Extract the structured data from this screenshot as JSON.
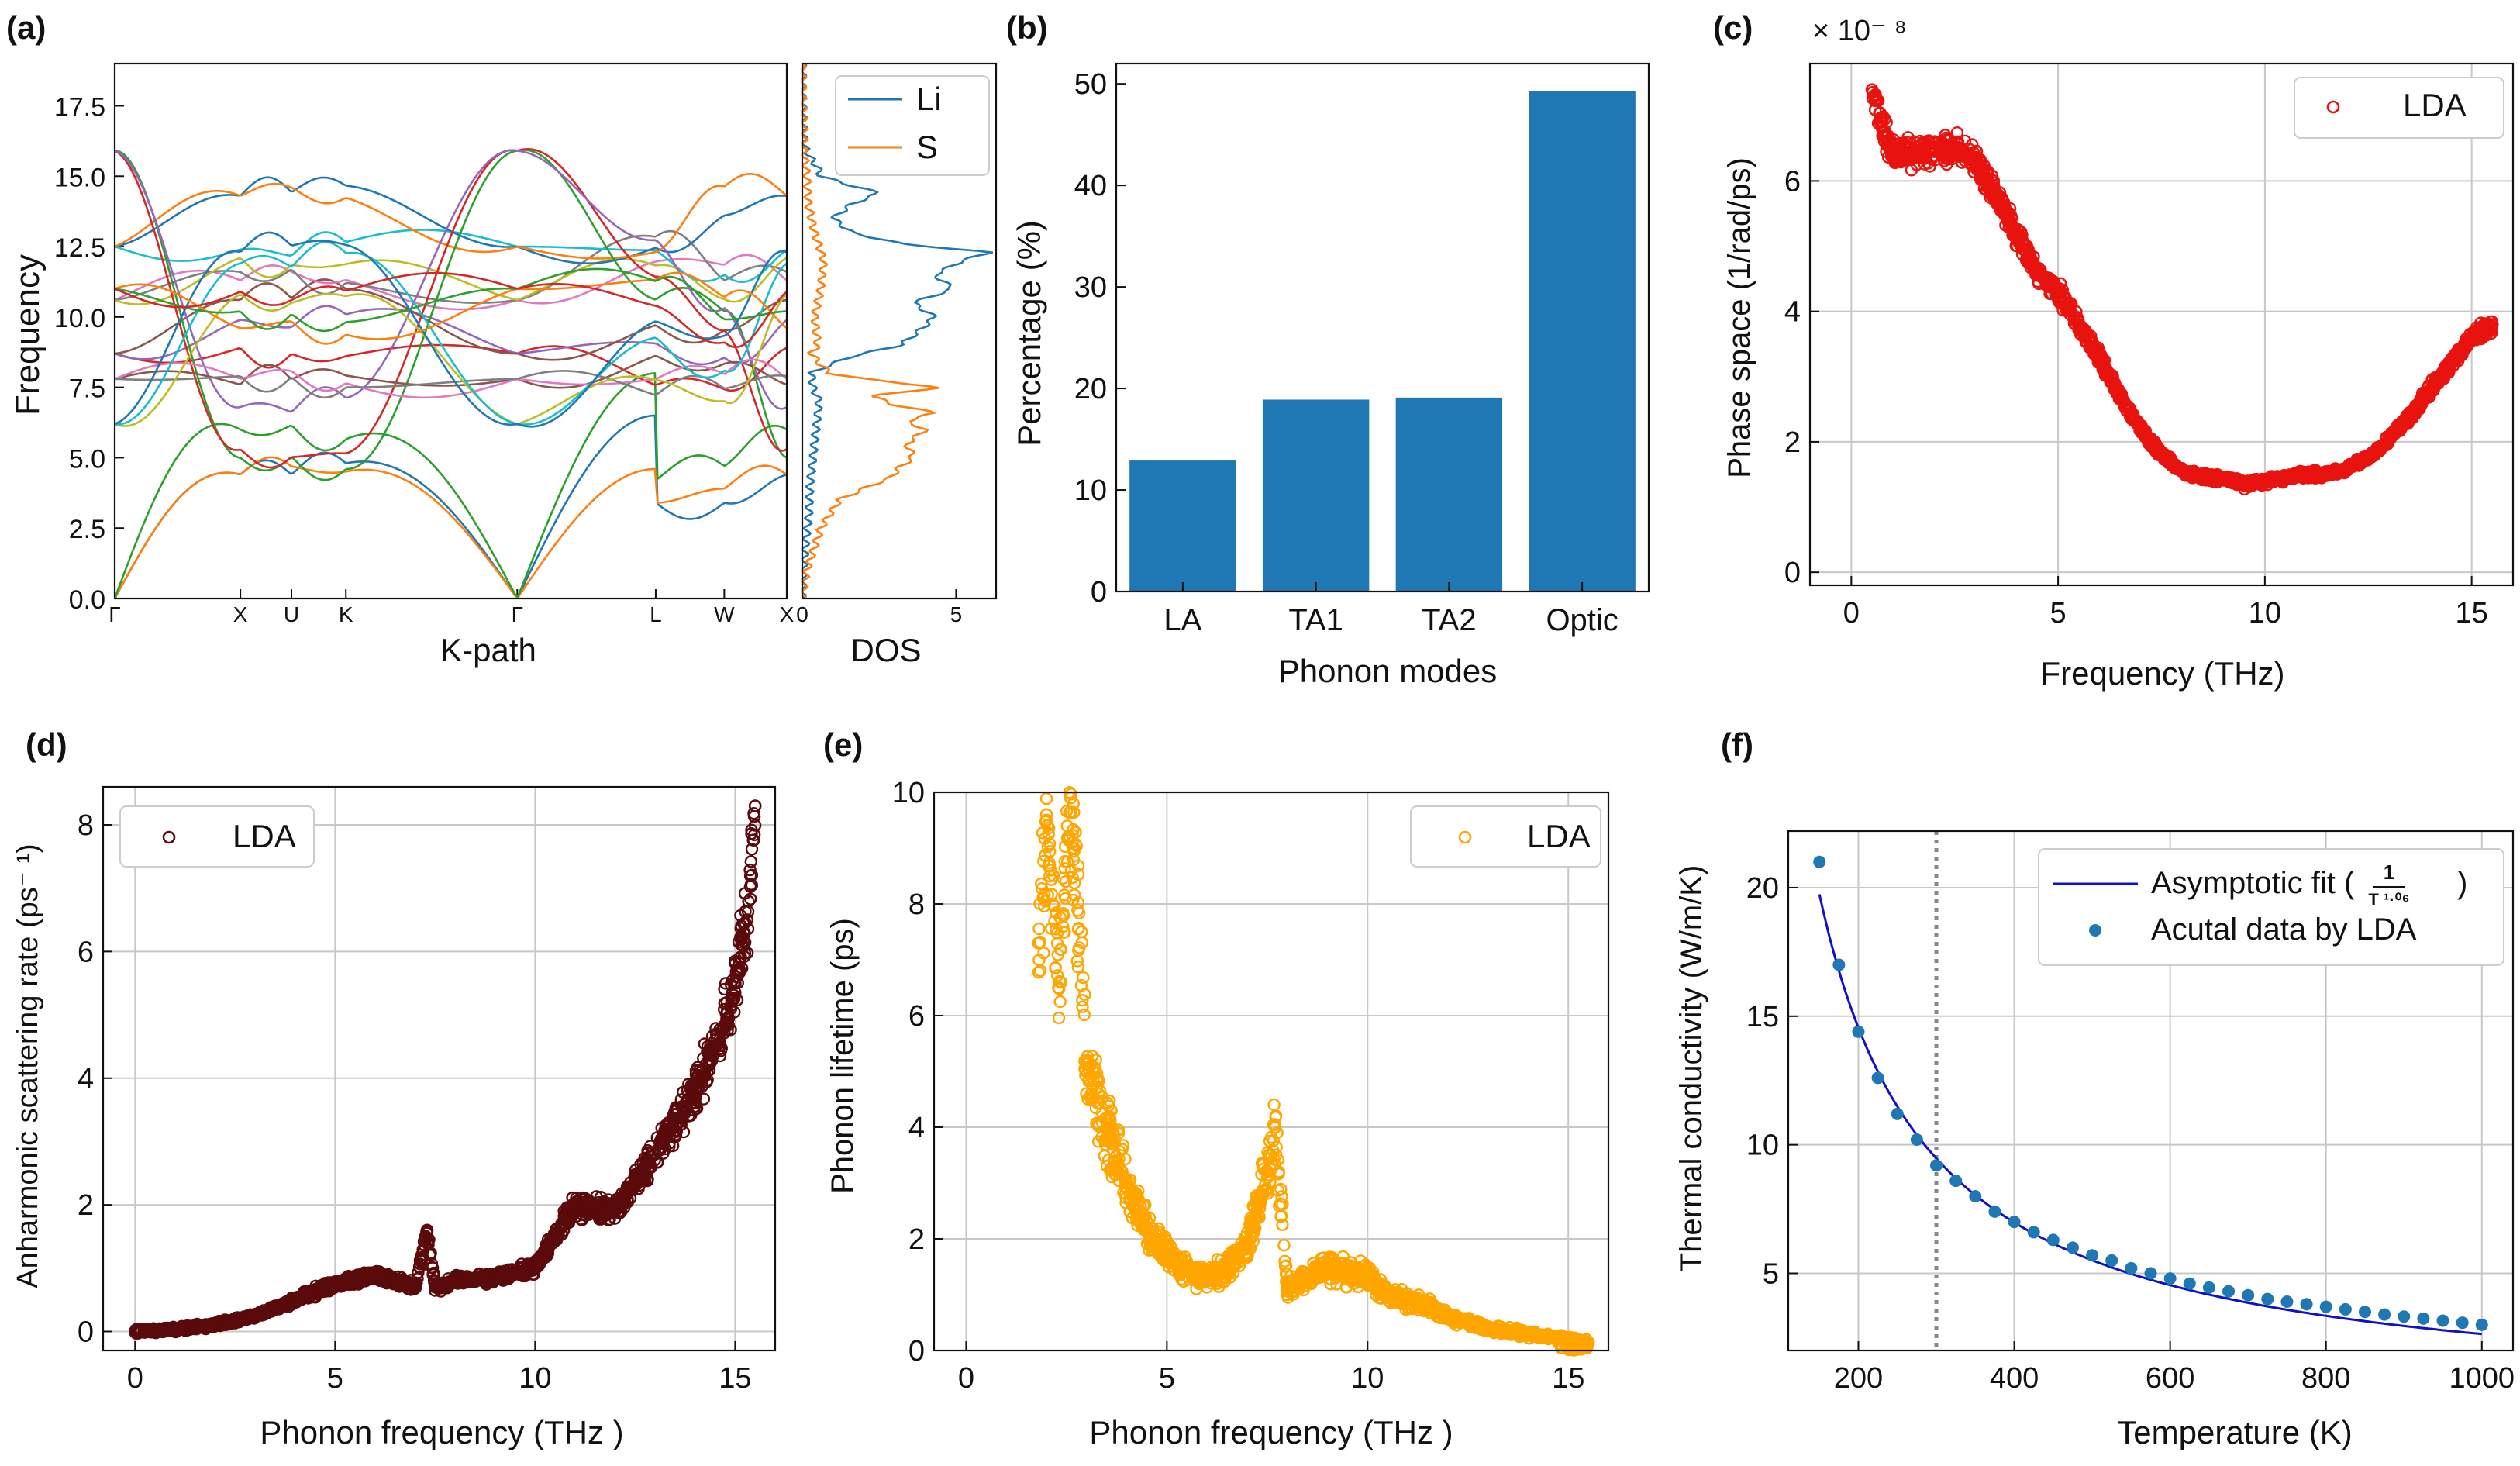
{
  "figure": {
    "panel_labels": [
      "(a)",
      "(b)",
      "(c)",
      "(d)",
      "(e)",
      "(f)"
    ]
  },
  "colors": {
    "blue": "#1f77b4",
    "orange": "#ff7f0e",
    "red": "#e8130f",
    "darkred": "#5a0a0a",
    "gold": "#ffa500",
    "fit": "#1010c8",
    "grid": "#c8c8c8",
    "dotted": "#888888",
    "palette": [
      "#1f77b4",
      "#ff7f0e",
      "#2ca02c",
      "#d62728",
      "#9467bd",
      "#8c564b",
      "#e377c2",
      "#7f7f7f",
      "#bcbd22",
      "#17becf"
    ]
  },
  "chart_data": [
    {
      "id": "a",
      "type": "line",
      "title": "",
      "xlabel": "K-path",
      "ylabel": "Frequency",
      "ylim": [
        0,
        19
      ],
      "yticks": [
        0,
        2.5,
        5.0,
        7.5,
        10.0,
        12.5,
        15.0,
        17.5
      ],
      "ytick_labels": [
        "0.0",
        "2.5",
        "5.0",
        "7.5",
        "10.0",
        "12.5",
        "15.0",
        "17.5"
      ],
      "path_ticks": [
        {
          "label": "Γ",
          "pos": 0.0
        },
        {
          "label": "X",
          "pos": 0.187
        },
        {
          "label": "U",
          "pos": 0.263
        },
        {
          "label": "K",
          "pos": 0.344
        },
        {
          "label": "Γ",
          "pos": 0.599
        },
        {
          "label": "L",
          "pos": 0.805
        },
        {
          "label": "W",
          "pos": 0.907
        },
        {
          "label": "X",
          "pos": 1.0
        }
      ],
      "n_branches": 24,
      "endpoint_frequencies": {
        "Γ": [
          0,
          0,
          0,
          8.7,
          8.7,
          8.7,
          10.6,
          10.6,
          10.6,
          12.5,
          12.5,
          12.5,
          15.9,
          15.9,
          15.9,
          7.8,
          7.8,
          7.8,
          6.2,
          6.2,
          6.2,
          11.0,
          11.0,
          11.0
        ],
        "X": [
          4.4,
          4.4,
          6.0,
          8.9,
          9.9,
          10.6,
          11.3,
          11.6,
          12.1,
          12.4,
          14.3,
          14.3,
          5.0,
          5.3,
          6.8,
          7.6,
          7.8,
          7.9,
          10.8,
          11.9,
          12.3,
          9.6,
          10.2,
          10.9
        ]
      }
    },
    {
      "id": "a-dos",
      "type": "line",
      "xlabel": "DOS",
      "ylabel": "",
      "xlim": [
        0,
        6.3
      ],
      "ylim": [
        0,
        19
      ],
      "xticks": [
        0,
        5
      ],
      "xtick_labels": [
        "0",
        "5"
      ],
      "legend": [
        "Li",
        "S"
      ],
      "legend_loc": "top-right",
      "series": [
        {
          "name": "Li",
          "color": "#1f77b4",
          "freq": [
            0,
            1,
            2,
            3,
            4,
            5,
            6,
            7,
            7.5,
            8,
            8.3,
            8.6,
            9,
            9.5,
            10,
            10.5,
            11,
            11.5,
            12,
            12.3,
            12.6,
            13,
            13.5,
            14,
            14.4,
            14.7,
            15,
            15.3,
            15.6,
            16,
            16.5,
            17,
            18,
            19
          ],
          "dos": [
            0,
            0.04,
            0.12,
            0.22,
            0.25,
            0.35,
            0.45,
            0.55,
            0.35,
            0.3,
            0.9,
            1.6,
            3.2,
            3.8,
            4.3,
            3.6,
            4.9,
            4.3,
            5.2,
            6.1,
            3.2,
            1.6,
            1.0,
            1.6,
            2.5,
            1.5,
            0.6,
            0.5,
            0.3,
            0.1,
            0.05,
            0.02,
            0,
            0
          ]
        },
        {
          "name": "S",
          "color": "#ff7f0e",
          "freq": [
            0,
            0.5,
            1,
            1.5,
            2,
            2.5,
            3,
            3.5,
            4,
            4.3,
            4.6,
            5,
            5.5,
            6,
            6.3,
            6.6,
            6.9,
            7.2,
            7.5,
            7.8,
            8,
            8.3,
            8.7,
            9,
            10,
            11,
            12,
            13,
            14,
            15,
            16,
            19
          ],
          "dos": [
            0,
            0.05,
            0.15,
            0.3,
            0.45,
            0.6,
            0.9,
            1.2,
            2.2,
            2.9,
            3.1,
            3.6,
            3.4,
            4.0,
            3.4,
            4.3,
            2.9,
            2.3,
            4.5,
            2.0,
            0.9,
            0.6,
            0.3,
            0.5,
            0.4,
            0.6,
            0.7,
            0.4,
            0.2,
            0.15,
            0.05,
            0
          ]
        }
      ]
    },
    {
      "id": "b",
      "type": "bar",
      "title": "",
      "xlabel": "Phonon modes",
      "ylabel": "Percentage (%)",
      "categories": [
        "LA",
        "TA1",
        "TA2",
        "Optic"
      ],
      "values": [
        12.9,
        18.9,
        19.1,
        49.3
      ],
      "ylim": [
        0,
        52
      ],
      "yticks": [
        0,
        10,
        20,
        30,
        40,
        50
      ]
    },
    {
      "id": "c",
      "type": "scatter",
      "title": "",
      "xlabel": "Frequency (THz)",
      "ylabel": "Phase space (1/rad/ps)",
      "scale_label": "× 10⁻ ⁸",
      "xlim": [
        -1,
        16
      ],
      "ylim": [
        -0.2,
        7.8
      ],
      "xticks": [
        0,
        5,
        10,
        15
      ],
      "yticks": [
        0,
        2,
        4,
        6
      ],
      "legend": [
        "LDA"
      ],
      "legend_loc": "top-right",
      "marker": "open-circle",
      "x": [
        0.5,
        0.7,
        0.9,
        1.0,
        1.5,
        2,
        2.5,
        3,
        3.5,
        4,
        4.5,
        5,
        5.5,
        6,
        6.5,
        7,
        7.5,
        8,
        8.5,
        9,
        9.5,
        10,
        10.5,
        11,
        11.5,
        12,
        12.5,
        13,
        13.5,
        14,
        14.5,
        15,
        15.5
      ],
      "y": [
        7.4,
        6.9,
        6.6,
        6.45,
        6.4,
        6.45,
        6.5,
        6.3,
        5.8,
        5.2,
        4.6,
        4.3,
        3.8,
        3.3,
        2.7,
        2.2,
        1.8,
        1.55,
        1.45,
        1.45,
        1.35,
        1.4,
        1.45,
        1.5,
        1.5,
        1.6,
        1.75,
        2.05,
        2.4,
        2.8,
        3.2,
        3.6,
        3.8
      ]
    },
    {
      "id": "d",
      "type": "scatter",
      "title": "",
      "xlabel": "Phonon frequency (THz )",
      "ylabel": "Anharmonic scattering rate (ps⁻ ¹)",
      "xlim": [
        -0.8,
        16
      ],
      "ylim": [
        -0.3,
        8.6
      ],
      "xticks": [
        0,
        5,
        10,
        15
      ],
      "yticks": [
        0,
        2,
        4,
        6,
        8
      ],
      "legend": [
        "LDA"
      ],
      "legend_loc": "top-left",
      "marker": "open-circle",
      "x": [
        0,
        1,
        2,
        3,
        4,
        5,
        6,
        7,
        7.3,
        7.5,
        8,
        9,
        10,
        10.5,
        11,
        12,
        13,
        14,
        14.5,
        15,
        15.3,
        15.5
      ],
      "y": [
        0,
        0.03,
        0.1,
        0.25,
        0.5,
        0.75,
        0.9,
        0.7,
        1.6,
        0.7,
        0.8,
        0.85,
        1.0,
        1.5,
        2.0,
        1.9,
        2.8,
        3.8,
        4.5,
        5.5,
        6.5,
        8.3
      ]
    },
    {
      "id": "e",
      "type": "scatter",
      "title": "",
      "xlabel": "Phonon frequency (THz )",
      "ylabel": "Phonon lifetime (ps)",
      "xlim": [
        -0.8,
        16
      ],
      "ylim": [
        0,
        10
      ],
      "xticks": [
        0,
        5,
        10,
        15
      ],
      "yticks": [
        0,
        2,
        4,
        6,
        8,
        10
      ],
      "legend": [
        "LDA"
      ],
      "legend_loc": "top-right",
      "marker": "open-circle",
      "x": [
        1.8,
        2,
        2.3,
        2.6,
        3,
        3.5,
        4,
        4.5,
        5,
        5.5,
        6,
        6.5,
        7,
        7.5,
        7.7,
        8,
        8.5,
        9,
        9.5,
        10,
        10.5,
        11,
        11.5,
        12,
        12.5,
        13,
        13.5,
        14,
        14.5,
        15,
        15.5
      ],
      "y": [
        7.3,
        9.6,
        6.5,
        9.9,
        5.2,
        4.0,
        3.0,
        2.2,
        1.7,
        1.4,
        1.3,
        1.5,
        1.9,
        3.2,
        4.0,
        1.1,
        1.3,
        1.5,
        1.4,
        1.3,
        1.0,
        0.9,
        0.8,
        0.6,
        0.5,
        0.4,
        0.35,
        0.3,
        0.25,
        0.2,
        0.15
      ]
    },
    {
      "id": "f",
      "type": "scatter",
      "title": "",
      "xlabel": "Temperature (K)",
      "ylabel": "Thermal conductivity (W/m/K)",
      "xlim": [
        110,
        1040
      ],
      "ylim": [
        2,
        22.2
      ],
      "xticks": [
        200,
        400,
        600,
        800,
        1000
      ],
      "yticks": [
        5,
        10,
        15,
        20
      ],
      "legend": [
        "Asymptotic fit (1/T^1.06)",
        "Acutal data by LDA"
      ],
      "legend_loc": "top-right",
      "fit_label_prefix": "Asymptotic fit (",
      "fit_label_num": "1",
      "fit_label_den": "T ¹·⁰⁶",
      "fit_label_suffix": ")",
      "vline_x": 300,
      "fit_exponent": 1.06,
      "fit_coefficient": 4000,
      "x": [
        150,
        175,
        200,
        225,
        250,
        275,
        300,
        325,
        350,
        375,
        400,
        425,
        450,
        475,
        500,
        525,
        550,
        575,
        600,
        625,
        650,
        675,
        700,
        725,
        750,
        775,
        800,
        825,
        850,
        875,
        900,
        925,
        950,
        975,
        1000
      ],
      "y": [
        21.0,
        17.0,
        14.4,
        12.6,
        11.2,
        10.2,
        9.2,
        8.6,
        8.0,
        7.4,
        7.0,
        6.6,
        6.3,
        6.0,
        5.7,
        5.5,
        5.2,
        5.0,
        4.8,
        4.6,
        4.45,
        4.3,
        4.15,
        4.0,
        3.9,
        3.8,
        3.7,
        3.6,
        3.5,
        3.4,
        3.32,
        3.24,
        3.16,
        3.08,
        3.0
      ]
    }
  ]
}
